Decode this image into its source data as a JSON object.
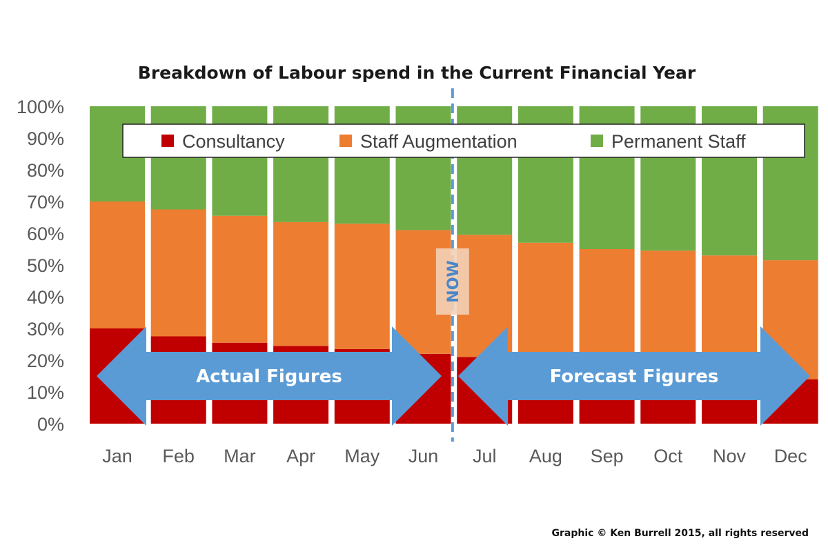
{
  "chart_data": {
    "type": "bar",
    "stacked": true,
    "title": "Breakdown of Labour spend in the Current Financial Year",
    "categories": [
      "Jan",
      "Feb",
      "Mar",
      "Apr",
      "May",
      "Jun",
      "Jul",
      "Aug",
      "Sep",
      "Oct",
      "Nov",
      "Dec"
    ],
    "series": [
      {
        "name": "Consultancy",
        "color": "#c00000",
        "values": [
          30,
          27.5,
          25.5,
          24.5,
          23.5,
          22,
          21,
          19.5,
          18,
          16.5,
          15.5,
          14
        ]
      },
      {
        "name": "Staff Augmentation",
        "color": "#ed7d31",
        "values": [
          40,
          40,
          40,
          39,
          39.5,
          39,
          38.5,
          37.5,
          37,
          38,
          37.5,
          37.5
        ]
      },
      {
        "name": "Permanent Staff",
        "color": "#70ad47",
        "values": [
          30,
          32.5,
          34.5,
          36.5,
          37,
          39,
          40.5,
          43,
          45,
          45.5,
          47,
          48.5
        ]
      }
    ],
    "ylim": [
      0,
      100
    ],
    "yticks": [
      "0%",
      "10%",
      "20%",
      "30%",
      "40%",
      "50%",
      "60%",
      "70%",
      "80%",
      "90%",
      "100%"
    ],
    "grid": false,
    "legend_position": "top, inside plot",
    "annotations": {
      "divider_label": "NOW",
      "left_arrow_label": "Actual Figures",
      "right_arrow_label": "Forecast Figures",
      "arrow_color": "#5b9bd5"
    }
  },
  "credit": "Graphic © Ken Burrell 2015, all rights reserved"
}
